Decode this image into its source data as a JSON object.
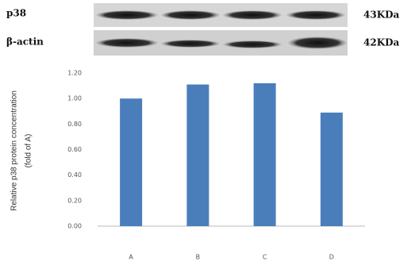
{
  "blot": {
    "rows": [
      {
        "label": "p38",
        "size": "43KDa"
      },
      {
        "label": "β-actin",
        "size": "42KDa"
      }
    ]
  },
  "chart_data": {
    "type": "bar",
    "y_label": [
      "Relative p38 protein concentration",
      "(fold of A)"
    ],
    "categories": [
      "A",
      "B",
      "C",
      "D"
    ],
    "values": [
      1.0,
      1.11,
      1.12,
      0.89
    ],
    "color": "#4a7ebb",
    "ylim": [
      0,
      1.2
    ],
    "yticks": [
      {
        "value": 0,
        "label": "0.00"
      },
      {
        "value": 0.2,
        "label": "0.20"
      },
      {
        "value": 0.4,
        "label": "0.40"
      },
      {
        "value": 0.6,
        "label": "0.60"
      },
      {
        "value": 0.8,
        "label": "0.80"
      },
      {
        "value": 1.0,
        "label": "1.00"
      },
      {
        "value": 1.2,
        "label": "1.20"
      }
    ],
    "grid": false
  }
}
